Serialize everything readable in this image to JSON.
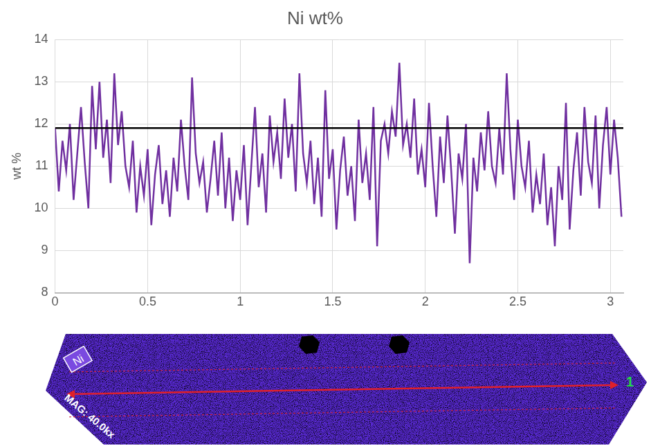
{
  "chart_data": {
    "type": "line",
    "title": "Ni wt%",
    "y_label": "wt %",
    "color": "#7030a0",
    "reference_line": 11.9,
    "reference_color": "#000000",
    "xlim": [
      0,
      3.07
    ],
    "xticks": [
      0,
      0.5,
      1,
      1.5,
      2,
      2.5,
      3
    ],
    "ylim": [
      8,
      14
    ],
    "yticks": [
      8,
      9,
      10,
      11,
      12,
      13,
      14
    ],
    "grid": true,
    "x": [
      0,
      0.02,
      0.04,
      0.06,
      0.08,
      0.1,
      0.12,
      0.14,
      0.16,
      0.18,
      0.2,
      0.22,
      0.24,
      0.26,
      0.28,
      0.3,
      0.32,
      0.34,
      0.36,
      0.38,
      0.4,
      0.42,
      0.44,
      0.46,
      0.48,
      0.5,
      0.52,
      0.54,
      0.56,
      0.58,
      0.6,
      0.62,
      0.64,
      0.66,
      0.68,
      0.7,
      0.72,
      0.74,
      0.76,
      0.78,
      0.8,
      0.82,
      0.84,
      0.86,
      0.88,
      0.9,
      0.92,
      0.94,
      0.96,
      0.98,
      1,
      1.02,
      1.04,
      1.06,
      1.08,
      1.1,
      1.12,
      1.14,
      1.16,
      1.18,
      1.2,
      1.22,
      1.24,
      1.26,
      1.28,
      1.3,
      1.32,
      1.34,
      1.36,
      1.38,
      1.4,
      1.42,
      1.44,
      1.46,
      1.48,
      1.5,
      1.52,
      1.54,
      1.56,
      1.58,
      1.6,
      1.62,
      1.64,
      1.66,
      1.68,
      1.7,
      1.72,
      1.74,
      1.76,
      1.78,
      1.8,
      1.82,
      1.84,
      1.86,
      1.88,
      1.9,
      1.92,
      1.94,
      1.96,
      1.98,
      2,
      2.02,
      2.04,
      2.06,
      2.08,
      2.1,
      2.12,
      2.14,
      2.16,
      2.18,
      2.2,
      2.22,
      2.24,
      2.26,
      2.28,
      2.3,
      2.32,
      2.34,
      2.36,
      2.38,
      2.4,
      2.42,
      2.44,
      2.46,
      2.48,
      2.5,
      2.52,
      2.54,
      2.56,
      2.58,
      2.6,
      2.62,
      2.64,
      2.66,
      2.68,
      2.7,
      2.72,
      2.74,
      2.76,
      2.78,
      2.8,
      2.82,
      2.84,
      2.86,
      2.88,
      2.9,
      2.92,
      2.94,
      2.96,
      2.98,
      3,
      3.02,
      3.04,
      3.06
    ],
    "values": [
      11.9,
      10.4,
      11.6,
      10.9,
      12.0,
      10.2,
      11.3,
      12.4,
      11.1,
      10.0,
      12.9,
      11.4,
      13.0,
      11.2,
      12.1,
      10.6,
      13.2,
      11.5,
      12.3,
      11.0,
      10.5,
      11.6,
      9.9,
      11.0,
      10.3,
      11.4,
      9.6,
      10.8,
      11.5,
      10.1,
      10.9,
      9.8,
      11.2,
      10.4,
      12.1,
      11.0,
      10.2,
      13.1,
      11.3,
      10.6,
      11.1,
      9.9,
      10.7,
      11.6,
      10.3,
      11.8,
      10.0,
      11.2,
      9.7,
      10.9,
      10.2,
      11.5,
      9.6,
      11.0,
      12.4,
      10.5,
      11.3,
      9.9,
      12.2,
      11.1,
      11.8,
      10.7,
      12.6,
      11.2,
      12.0,
      10.4,
      13.2,
      11.3,
      10.6,
      11.6,
      10.1,
      11.2,
      9.8,
      12.8,
      10.7,
      11.4,
      9.5,
      10.9,
      11.7,
      10.3,
      11.0,
      9.7,
      12.1,
      10.6,
      11.3,
      10.2,
      12.4,
      9.1,
      11.6,
      12.0,
      11.3,
      12.3,
      11.7,
      13.45,
      11.5,
      12.0,
      11.2,
      12.6,
      10.8,
      11.4,
      10.5,
      12.5,
      11.0,
      9.8,
      11.7,
      10.6,
      12.2,
      10.9,
      9.4,
      11.3,
      10.7,
      12.0,
      8.7,
      11.2,
      10.4,
      11.8,
      10.9,
      12.3,
      11.0,
      10.6,
      11.9,
      10.8,
      13.2,
      11.4,
      10.2,
      12.1,
      11.0,
      10.5,
      11.6,
      9.9,
      10.8,
      10.1,
      11.3,
      9.6,
      10.5,
      9.1,
      11.0,
      10.2,
      12.5,
      9.5,
      10.9,
      11.8,
      10.3,
      12.4,
      11.1,
      10.6,
      12.2,
      10.0,
      11.5,
      12.4,
      10.8,
      12.1,
      11.2,
      9.8
    ],
    "map": {
      "label": "Ni",
      "magnification": "MAG: 40.0kx",
      "point_label": "1"
    }
  }
}
